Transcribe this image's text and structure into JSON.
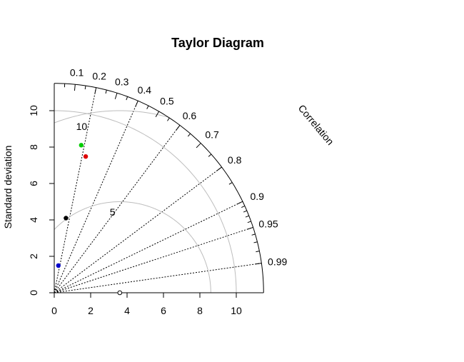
{
  "chart_data": {
    "type": "scatter",
    "title": "Taylor Diagram",
    "ylabel": "Standard deviation",
    "correlation_label": "Correlation",
    "sd_max": 11.5,
    "x_ticks": [
      "0",
      "2",
      "4",
      "6",
      "8",
      "10"
    ],
    "y_ticks": [
      "0",
      "2",
      "4",
      "6",
      "8",
      "10"
    ],
    "correlation_ticks": [
      "0.1",
      "0.2",
      "0.3",
      "0.4",
      "0.5",
      "0.6",
      "0.7",
      "0.8",
      "0.9",
      "0.95",
      "0.99"
    ],
    "correlation_ticks_minor": [
      0.05,
      0.15,
      0.25,
      0.35,
      0.45,
      0.55,
      0.65,
      0.75,
      0.85,
      0.91,
      0.92,
      0.93,
      0.94,
      0.96,
      0.97,
      0.98
    ],
    "correlation_lines": [
      0.2,
      0.4,
      0.6,
      0.8,
      0.9,
      0.95,
      0.99
    ],
    "sd_arc": 10,
    "rms_arcs": [
      "5",
      "10"
    ],
    "reference": {
      "sd": 3.6
    },
    "points": [
      {
        "sd": 8.24,
        "correlation": 0.18,
        "color": "#00cd00"
      },
      {
        "sd": 7.68,
        "correlation": 0.225,
        "color": "#dd0000"
      },
      {
        "sd": 4.15,
        "correlation": 0.155,
        "color": "#000000"
      },
      {
        "sd": 1.51,
        "correlation": 0.15,
        "color": "#0000cc"
      }
    ]
  }
}
